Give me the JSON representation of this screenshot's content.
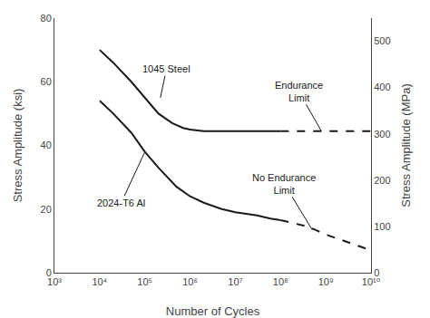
{
  "chart_data": {
    "type": "line",
    "xlabel": "Number of Cycles",
    "ylabel": "Stress Amplitude (ksi)",
    "y2label": "Stress Amplitude (MPa)",
    "log": "x",
    "grid": false,
    "color": "#1a1a1a",
    "xlim": [
      1000,
      10000000000.0
    ],
    "xticks": [
      {
        "value": 1000,
        "label": "10³"
      },
      {
        "value": 10000,
        "label": "10⁴"
      },
      {
        "value": 100000,
        "label": "10⁵"
      },
      {
        "value": 1000000,
        "label": "10⁶"
      },
      {
        "value": 10000000,
        "label": "10⁷"
      },
      {
        "value": 100000000,
        "label": "10⁸"
      },
      {
        "value": 1000000000,
        "label": "10⁹"
      },
      {
        "value": 10000000000.0,
        "label": "10¹⁰"
      }
    ],
    "ylim": [
      0,
      80
    ],
    "yticks": [
      0,
      20,
      40,
      60,
      80
    ],
    "y2lim": [
      0,
      550
    ],
    "y2ticks": [
      0,
      100,
      200,
      300,
      400,
      500
    ],
    "series": [
      {
        "name": "1045 Steel",
        "line_style": "solid",
        "x": [
          10000,
          20000,
          50000,
          100000,
          200000,
          400000,
          700000,
          1000000,
          2000000,
          5000000,
          10000000,
          100000000
        ],
        "values": [
          70,
          66,
          60,
          55,
          50,
          47,
          45.5,
          45,
          44.5,
          44.5,
          44.5,
          44.5
        ]
      },
      {
        "name": "1045 Steel",
        "line_style": "dashed",
        "x": [
          100000000,
          500000000,
          1000000000,
          10000000000.0
        ],
        "values": [
          44.5,
          44.5,
          44.5,
          44.5
        ]
      },
      {
        "name": "2024-T6 Al",
        "line_style": "solid",
        "x": [
          10000,
          20000,
          50000,
          100000,
          200000,
          500000,
          1000000,
          2000000,
          5000000,
          10000000,
          30000000,
          60000000,
          100000000
        ],
        "values": [
          54,
          50,
          44,
          38,
          33,
          27,
          24,
          22,
          20,
          19,
          18,
          17,
          16.5
        ]
      },
      {
        "name": "2024-T6 Al",
        "line_style": "dashed",
        "x": [
          100000000,
          200000000,
          400000000,
          700000000,
          1000000000,
          2000000000,
          5000000000,
          10000000000.0
        ],
        "values": [
          16.5,
          15.5,
          14.5,
          13,
          12,
          10.5,
          8.5,
          7
        ]
      }
    ],
    "annotations": [
      {
        "text": "1045 Steel",
        "x": 220000,
        "y": 55,
        "text_x": 300000,
        "text_y": 64
      },
      {
        "text": "Endurance\nLimit",
        "x": 800000000,
        "y": 44.5,
        "text_x": 250000000,
        "text_y": 57
      },
      {
        "text": "2024-T6 Al",
        "x": 100000,
        "y": 38,
        "text_x": 30000,
        "text_y": 22
      },
      {
        "text": "No Endurance\nLimit",
        "x": 500000000,
        "y": 13.5,
        "text_x": 120000000,
        "text_y": 28
      }
    ]
  }
}
